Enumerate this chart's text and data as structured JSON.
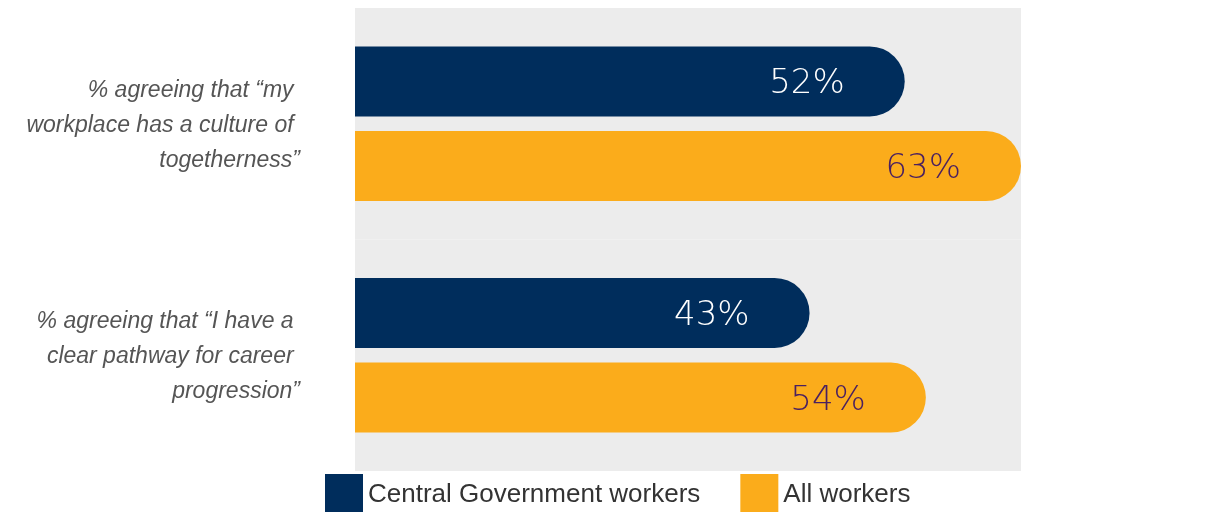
{
  "chart_data": {
    "type": "bar",
    "orientation": "horizontal",
    "categories": [
      "% agreeing that “my workplace has a culture of togetherness”",
      "% agreeing that “I have a clear pathway for career progression”"
    ],
    "series": [
      {
        "name": "Central Government workers",
        "color": "#002d5c",
        "values": [
          52,
          43
        ],
        "value_labels": [
          "52%",
          "43%"
        ]
      },
      {
        "name": "All workers",
        "color": "#fbac1b",
        "values": [
          63,
          54
        ],
        "value_labels": [
          "63%",
          "54%"
        ]
      }
    ],
    "legend": "bottom"
  }
}
